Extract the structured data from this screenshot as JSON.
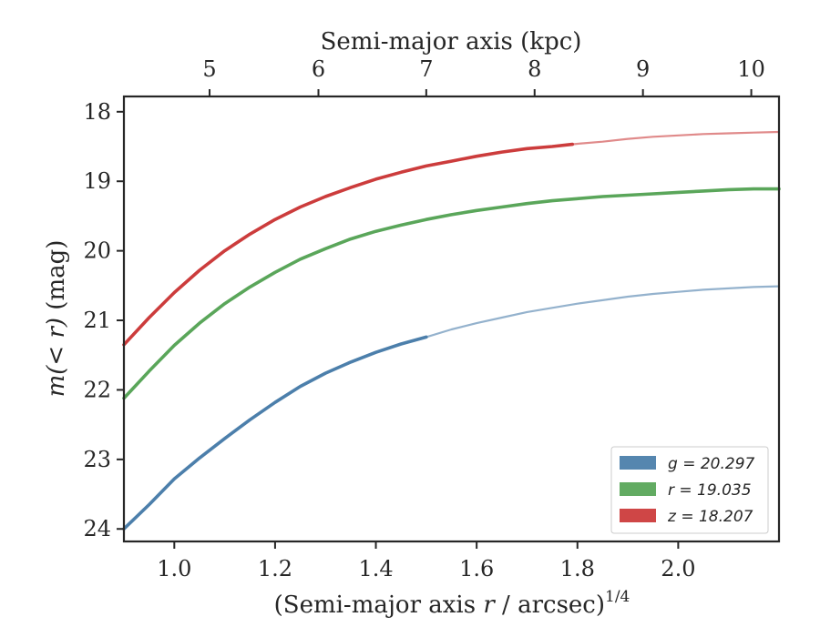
{
  "chart_data": {
    "type": "line",
    "title": "",
    "xlabel": "(Semi-major axis r / arcsec)^{1/4}",
    "xlabel_parts": [
      "(Semi-major axis ",
      "r",
      " / arcsec)",
      "1/4"
    ],
    "ylabel": "m(< r) (mag)",
    "ylabel_parts": [
      "m(< r)",
      " (mag)"
    ],
    "top_xlabel": "Semi-major axis (kpc)",
    "xlim": [
      0.9,
      2.2
    ],
    "ylim": [
      24.18,
      17.78
    ],
    "y_inverted": true,
    "xticks": [
      "1.0",
      "1.2",
      "1.4",
      "1.6",
      "1.8",
      "2.0"
    ],
    "xtick_values": [
      1.0,
      1.2,
      1.4,
      1.6,
      1.8,
      2.0
    ],
    "yticks": [
      "18",
      "19",
      "20",
      "21",
      "22",
      "23",
      "24"
    ],
    "ytick_values": [
      18,
      19,
      20,
      21,
      22,
      23,
      24
    ],
    "top_xticks": [
      "5",
      "6",
      "7",
      "8",
      "9",
      "10"
    ],
    "top_xtick_positions": [
      1.07,
      1.286,
      1.5,
      1.715,
      1.93,
      2.145
    ],
    "grid": false,
    "legend_position": "lower-right",
    "series": [
      {
        "name": "g = 20.297",
        "legend_label": "g = 20.297",
        "color": "#4c7fab",
        "solid_until": 1.5,
        "x": [
          0.9,
          0.95,
          1.0,
          1.05,
          1.1,
          1.15,
          1.2,
          1.25,
          1.3,
          1.35,
          1.4,
          1.45,
          1.5,
          1.55,
          1.6,
          1.65,
          1.7,
          1.75,
          1.8,
          1.85,
          1.9,
          1.95,
          2.0,
          2.05,
          2.1,
          2.15,
          2.2
        ],
        "y": [
          24.0,
          23.65,
          23.28,
          22.98,
          22.7,
          22.43,
          22.18,
          21.95,
          21.76,
          21.6,
          21.46,
          21.34,
          21.24,
          21.13,
          21.04,
          20.96,
          20.88,
          20.82,
          20.76,
          20.71,
          20.66,
          20.62,
          20.59,
          20.56,
          20.54,
          20.52,
          20.51
        ]
      },
      {
        "name": "r = 19.035",
        "legend_label": "r = 19.035",
        "color": "#5aa65a",
        "solid_until": 2.2,
        "x": [
          0.9,
          0.95,
          1.0,
          1.05,
          1.1,
          1.15,
          1.2,
          1.25,
          1.3,
          1.35,
          1.4,
          1.45,
          1.5,
          1.55,
          1.6,
          1.65,
          1.7,
          1.75,
          1.8,
          1.85,
          1.9,
          1.95,
          2.0,
          2.05,
          2.1,
          2.15,
          2.2
        ],
        "y": [
          22.12,
          21.73,
          21.36,
          21.04,
          20.76,
          20.52,
          20.31,
          20.12,
          19.97,
          19.83,
          19.72,
          19.63,
          19.55,
          19.48,
          19.42,
          19.37,
          19.32,
          19.28,
          19.25,
          19.22,
          19.2,
          19.18,
          19.16,
          19.14,
          19.12,
          19.11,
          19.11
        ]
      },
      {
        "name": "z = 18.207",
        "legend_label": "z = 18.207",
        "color": "#cc3c3c",
        "solid_until": 1.79,
        "x": [
          0.9,
          0.95,
          1.0,
          1.05,
          1.1,
          1.15,
          1.2,
          1.25,
          1.3,
          1.35,
          1.4,
          1.45,
          1.5,
          1.55,
          1.6,
          1.65,
          1.7,
          1.75,
          1.8,
          1.85,
          1.9,
          1.95,
          2.0,
          2.05,
          2.1,
          2.15,
          2.2
        ],
        "y": [
          21.35,
          20.96,
          20.6,
          20.28,
          20.0,
          19.76,
          19.55,
          19.37,
          19.22,
          19.09,
          18.97,
          18.87,
          18.78,
          18.71,
          18.64,
          18.58,
          18.53,
          18.5,
          18.46,
          18.43,
          18.39,
          18.36,
          18.34,
          18.32,
          18.31,
          18.3,
          18.29
        ]
      }
    ]
  }
}
